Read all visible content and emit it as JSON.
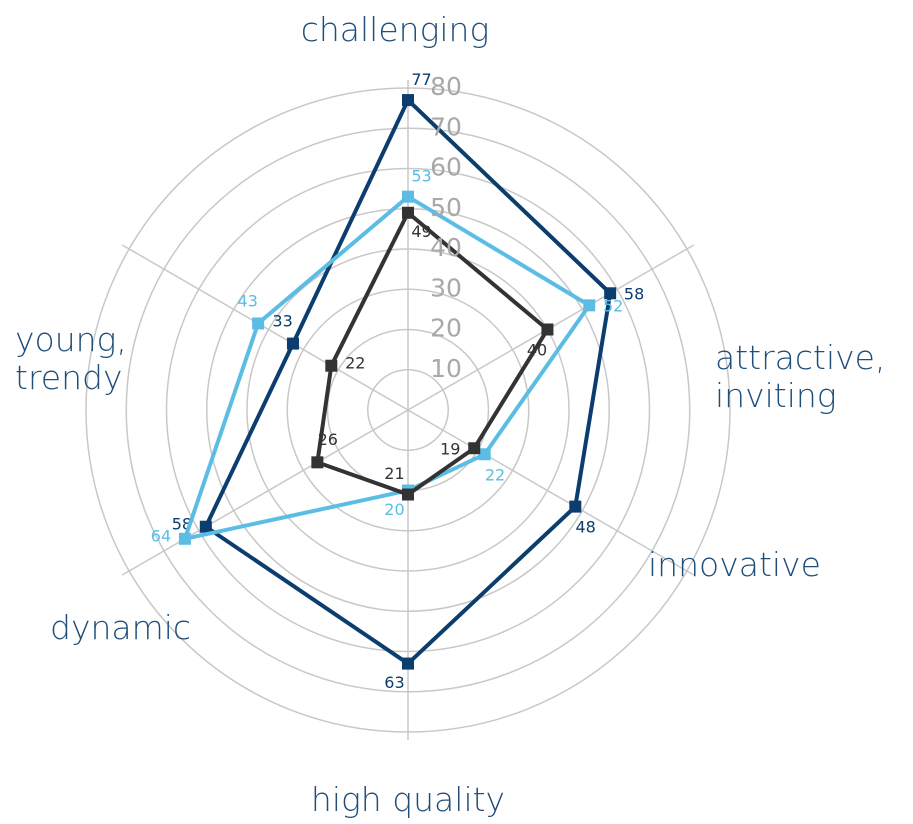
{
  "chart_data": {
    "type": "radar",
    "categories": [
      "challenging",
      "attractive,\ninviting",
      "innovative",
      "high quality",
      "dynamic",
      "young,\ntrendy"
    ],
    "series": [
      {
        "color": "#0b3d6e",
        "values": [
          77,
          58,
          48,
          63,
          58,
          33
        ]
      },
      {
        "color": "#5bbde4",
        "values": [
          53,
          52,
          22,
          20,
          64,
          43
        ]
      },
      {
        "color": "#333333",
        "values": [
          49,
          40,
          19,
          21,
          26,
          22
        ]
      }
    ],
    "rlim": [
      0,
      80
    ],
    "rticks": [
      10,
      20,
      30,
      40,
      50,
      60,
      70,
      80
    ],
    "grid": true
  }
}
